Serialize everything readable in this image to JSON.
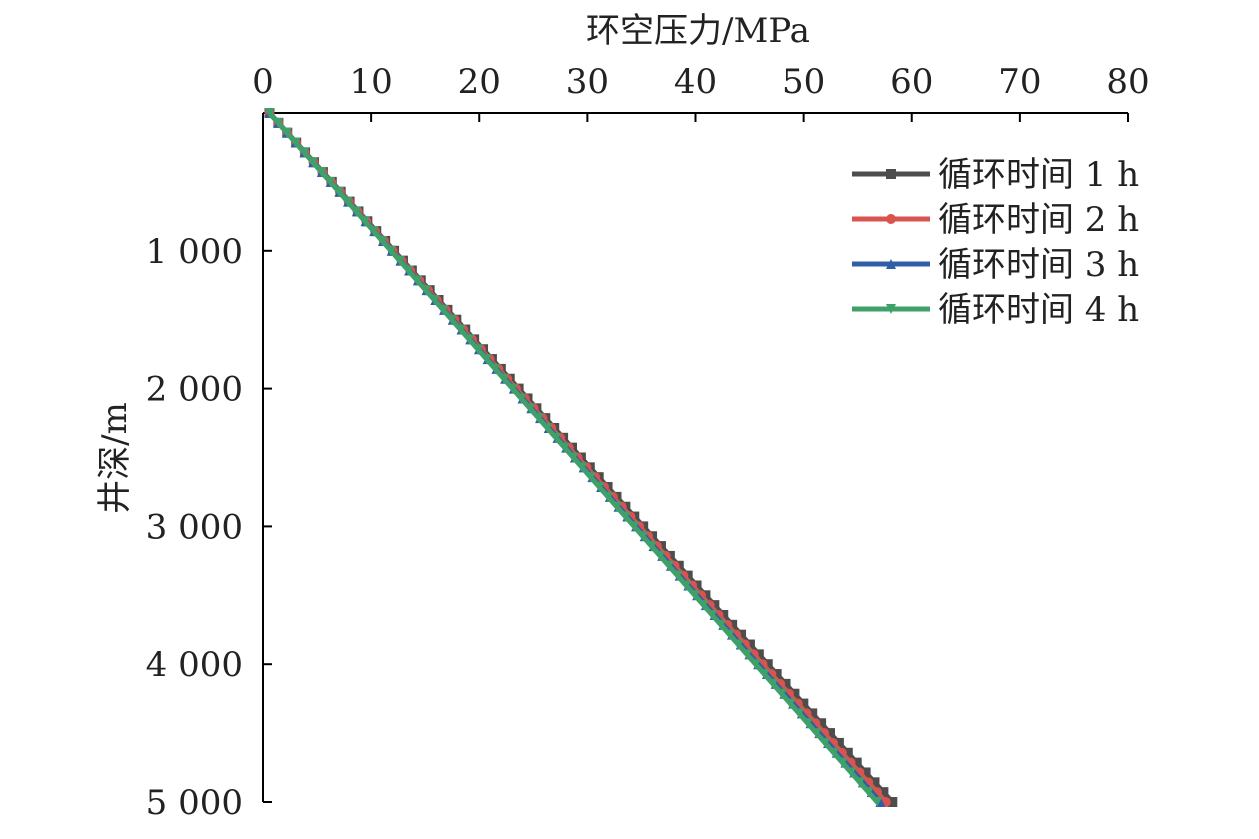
{
  "chart_data": {
    "type": "line",
    "xlabel": "环空压力/MPa",
    "ylabel": "井深/m",
    "xlim": [
      0,
      80
    ],
    "ylim": [
      0,
      5000
    ],
    "y_inverted": true,
    "x_axis_position": "top",
    "x_ticks": [
      0,
      10,
      20,
      30,
      40,
      50,
      60,
      70,
      80
    ],
    "x_tick_labels": [
      "0",
      "10",
      "20",
      "30",
      "40",
      "50",
      "60",
      "70",
      "80"
    ],
    "y_ticks": [
      1000,
      2000,
      3000,
      4000,
      5000
    ],
    "y_tick_labels": [
      "1 000",
      "2 000",
      "3 000",
      "4 000",
      "5 000"
    ],
    "grid": false,
    "legend_position": "top-right",
    "series": [
      {
        "name": "循环时间 1 h",
        "color": "#4d4d4d",
        "marker": "square",
        "x": [
          0.6,
          58.2
        ],
        "y": [
          0,
          5000
        ]
      },
      {
        "name": "循环时间 2 h",
        "color": "#d9534f",
        "marker": "circle",
        "x": [
          0.6,
          57.6
        ],
        "y": [
          0,
          5000
        ]
      },
      {
        "name": "循环时间 3 h",
        "color": "#2f5fa7",
        "marker": "triangle-up",
        "x": [
          0.6,
          57.1
        ],
        "y": [
          0,
          5000
        ]
      },
      {
        "name": "循环时间 4 h",
        "color": "#3fa06a",
        "marker": "triangle-down",
        "x": [
          0.6,
          56.8
        ],
        "y": [
          0,
          5000
        ]
      }
    ]
  }
}
